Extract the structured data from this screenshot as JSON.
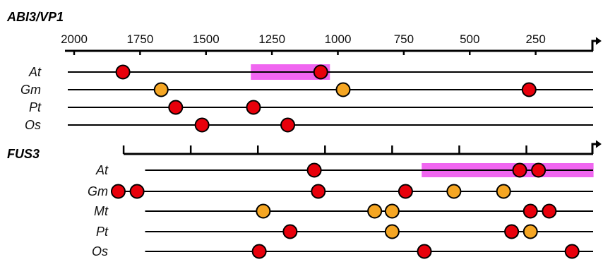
{
  "colors": {
    "red_marker": "#e8000b",
    "orange_marker": "#f5a623",
    "highlight": "#ee55ee",
    "line": "#000000"
  },
  "chart_data": [
    {
      "type": "diagram",
      "title": "ABI3/VP1",
      "axis": {
        "ticks": [
          2000,
          1750,
          1500,
          1250,
          1000,
          750,
          500,
          250
        ],
        "tick_labels": [
          "2000",
          "1750",
          "1500",
          "1250",
          "1000",
          "750",
          "500",
          "250"
        ]
      },
      "tracks": [
        {
          "species": "At",
          "start": 2000,
          "highlight": [
            1330,
            1030
          ],
          "markers": [
            {
              "pos": 1815,
              "color": "red"
            },
            {
              "pos": 1065,
              "color": "red"
            }
          ]
        },
        {
          "species": "Gm",
          "start": 2000,
          "markers": [
            {
              "pos": 1670,
              "color": "orange"
            },
            {
              "pos": 980,
              "color": "orange"
            },
            {
              "pos": 275,
              "color": "red"
            }
          ]
        },
        {
          "species": "Pt",
          "start": 2000,
          "markers": [
            {
              "pos": 1615,
              "color": "red"
            },
            {
              "pos": 1320,
              "color": "red"
            }
          ]
        },
        {
          "species": "Os",
          "start": 2000,
          "markers": [
            {
              "pos": 1515,
              "color": "red"
            },
            {
              "pos": 1190,
              "color": "red"
            }
          ]
        }
      ]
    },
    {
      "type": "diagram",
      "title": "FUS3",
      "axis": {
        "ticks": [
          1750,
          1500,
          1250,
          1000,
          750,
          500,
          250
        ]
      },
      "tracks": [
        {
          "species": "At",
          "start": 1670,
          "highlight": [
            640,
            0
          ],
          "markers": [
            {
              "pos": 1040,
              "color": "red"
            },
            {
              "pos": 275,
              "color": "red"
            },
            {
              "pos": 205,
              "color": "red"
            }
          ]
        },
        {
          "species": "Gm",
          "start": 1760,
          "markers": [
            {
              "pos": 1770,
              "color": "red"
            },
            {
              "pos": 1700,
              "color": "red"
            },
            {
              "pos": 1025,
              "color": "red"
            },
            {
              "pos": 700,
              "color": "red"
            },
            {
              "pos": 520,
              "color": "orange"
            },
            {
              "pos": 335,
              "color": "orange"
            }
          ]
        },
        {
          "species": "Mt",
          "start": 1670,
          "markers": [
            {
              "pos": 1230,
              "color": "orange"
            },
            {
              "pos": 815,
              "color": "orange"
            },
            {
              "pos": 750,
              "color": "orange"
            },
            {
              "pos": 235,
              "color": "red"
            },
            {
              "pos": 165,
              "color": "red"
            }
          ]
        },
        {
          "species": "Pt",
          "start": 1670,
          "markers": [
            {
              "pos": 1130,
              "color": "red"
            },
            {
              "pos": 750,
              "color": "orange"
            },
            {
              "pos": 305,
              "color": "red"
            },
            {
              "pos": 235,
              "color": "orange"
            }
          ]
        },
        {
          "species": "Os",
          "start": 1670,
          "markers": [
            {
              "pos": 1245,
              "color": "red"
            },
            {
              "pos": 630,
              "color": "red"
            },
            {
              "pos": 80,
              "color": "red"
            }
          ]
        }
      ]
    }
  ]
}
